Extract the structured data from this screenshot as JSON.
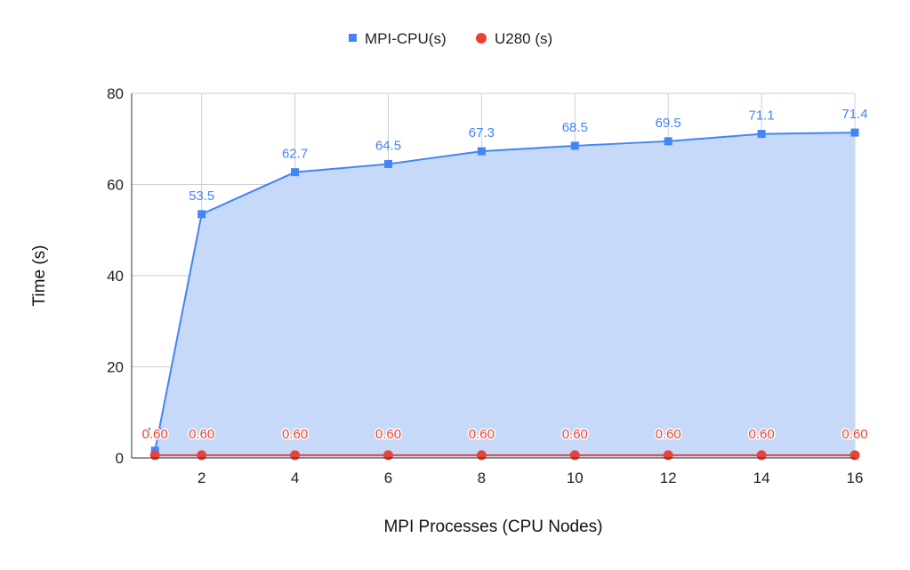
{
  "chart_data": {
    "type": "line",
    "title": "",
    "xlabel": "MPI Processes (CPU Nodes)",
    "ylabel": "Time (s)",
    "xlim": [
      0.5,
      16
    ],
    "ylim": [
      0,
      80
    ],
    "x_ticks": [
      2,
      4,
      6,
      8,
      10,
      12,
      14,
      16
    ],
    "y_ticks": [
      0,
      20,
      40,
      60,
      80
    ],
    "grid": true,
    "legend_position": "top",
    "x": [
      1,
      2,
      4,
      6,
      8,
      10,
      12,
      14,
      16
    ],
    "series": [
      {
        "name": "MPI-CPU(s)",
        "color": "#4285f4",
        "fill": "#c6d9f8",
        "marker": "square",
        "area": true,
        "values": [
          1.6,
          53.5,
          62.7,
          64.5,
          67.3,
          68.5,
          69.5,
          71.1,
          71.4
        ],
        "labels": [
          "1.6",
          "53.5",
          "62.7",
          "64.5",
          "67.3",
          "68.5",
          "69.5",
          "71.1",
          "71.4"
        ]
      },
      {
        "name": "U280 (s)",
        "color": "#ea4335",
        "marker": "circle",
        "area": false,
        "values": [
          0.6,
          0.6,
          0.6,
          0.6,
          0.6,
          0.6,
          0.6,
          0.6,
          0.6
        ],
        "labels": [
          "0.60",
          "0.60",
          "0.60",
          "0.60",
          "0.60",
          "0.60",
          "0.60",
          "0.60",
          "0.60"
        ]
      }
    ]
  }
}
